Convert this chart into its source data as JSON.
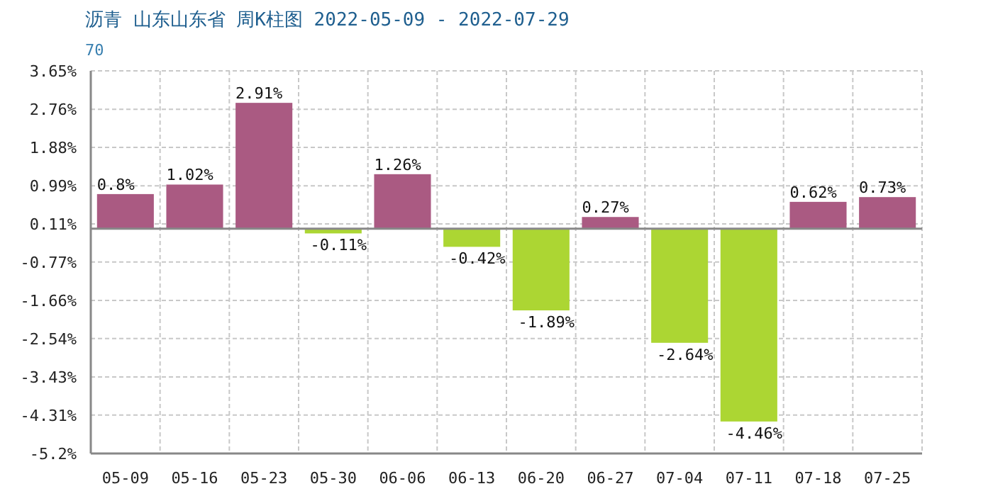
{
  "chart_data": {
    "type": "bar",
    "title": "沥青  山东山东省  周K柱图 2022-05-09 - 2022-07-29",
    "subtitle": "70",
    "categories": [
      "05-09",
      "05-16",
      "05-23",
      "05-30",
      "06-06",
      "06-13",
      "06-20",
      "06-27",
      "07-04",
      "07-11",
      "07-18",
      "07-25"
    ],
    "values": [
      0.8,
      1.02,
      2.91,
      -0.11,
      1.26,
      -0.42,
      -1.89,
      0.27,
      -2.64,
      -4.46,
      0.62,
      0.73
    ],
    "value_labels": [
      "0.8%",
      "1.02%",
      "2.91%",
      "-0.11%",
      "1.26%",
      "-0.42%",
      "-1.89%",
      "0.27%",
      "-2.64%",
      "-4.46%",
      "0.62%",
      "0.73%"
    ],
    "colors": [
      "#aa5a82",
      "#aa5a82",
      "#aa5a82",
      "#acd633",
      "#aa5a82",
      "#acd633",
      "#acd633",
      "#aa5a82",
      "#acd633",
      "#acd633",
      "#aa5a82",
      "#aa5a82"
    ],
    "ylim": [
      -5.2,
      3.65
    ],
    "yticks": [
      {
        "value": 3.65,
        "label": "3.65%"
      },
      {
        "value": 2.76,
        "label": "2.76%"
      },
      {
        "value": 1.88,
        "label": "1.88%"
      },
      {
        "value": 0.99,
        "label": "0.99%"
      },
      {
        "value": 0.11,
        "label": "0.11%"
      },
      {
        "value": -0.77,
        "label": "-0.77%"
      },
      {
        "value": -1.66,
        "label": "-1.66%"
      },
      {
        "value": -2.54,
        "label": "-2.54%"
      },
      {
        "value": -3.43,
        "label": "-3.43%"
      },
      {
        "value": -4.31,
        "label": "-4.31%"
      },
      {
        "value": -5.2,
        "label": "-5.2%"
      }
    ],
    "grid": true
  }
}
